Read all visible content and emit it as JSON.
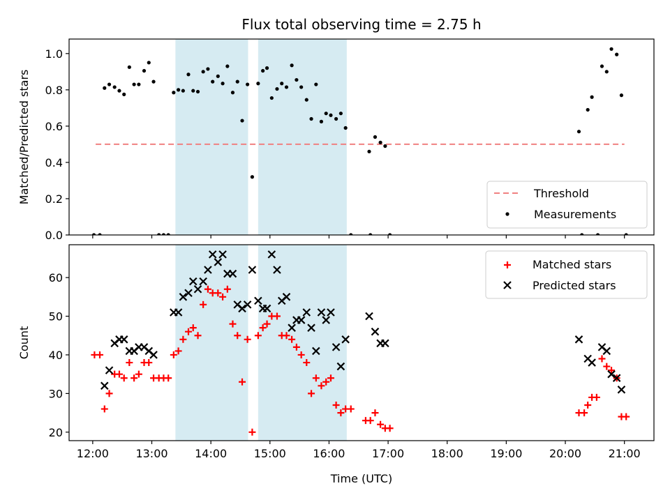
{
  "chart_data": [
    {
      "type": "scatter",
      "title": "Flux total observing time = 2.75 h",
      "ylabel": "Matched/Predicted stars",
      "ylim": [
        0,
        1.08
      ],
      "yticks": [
        "0.0",
        "0.2",
        "0.4",
        "0.6",
        "0.8",
        "1.0"
      ],
      "shared_x": true,
      "xlim": [
        11.6,
        21.5
      ],
      "shaded_intervals": [
        [
          13.4,
          14.63
        ],
        [
          14.8,
          16.3
        ]
      ],
      "shade_color": "#add8e6",
      "threshold": {
        "name": "Threshold",
        "y": 0.5,
        "x_range": [
          12.05,
          21.0
        ],
        "color": "#f08080"
      },
      "legend": {
        "position": "lower right",
        "entries": [
          "Threshold",
          "Measurements"
        ]
      },
      "series": [
        {
          "name": "Measurements",
          "color": "#000000",
          "marker": "dot",
          "points": [
            [
              12.02,
              0.0
            ],
            [
              12.12,
              0.0
            ],
            [
              12.2,
              0.81
            ],
            [
              12.28,
              0.83
            ],
            [
              12.37,
              0.815
            ],
            [
              12.45,
              0.795
            ],
            [
              12.53,
              0.775
            ],
            [
              12.62,
              0.925
            ],
            [
              12.7,
              0.83
            ],
            [
              12.78,
              0.83
            ],
            [
              12.87,
              0.905
            ],
            [
              12.95,
              0.95
            ],
            [
              13.03,
              0.845
            ],
            [
              13.12,
              0.0
            ],
            [
              13.2,
              0.0
            ],
            [
              13.28,
              0.0
            ],
            [
              13.37,
              0.785
            ],
            [
              13.45,
              0.8
            ],
            [
              13.53,
              0.795
            ],
            [
              13.62,
              0.885
            ],
            [
              13.7,
              0.795
            ],
            [
              13.78,
              0.79
            ],
            [
              13.87,
              0.9
            ],
            [
              13.95,
              0.915
            ],
            [
              14.03,
              0.845
            ],
            [
              14.12,
              0.875
            ],
            [
              14.2,
              0.835
            ],
            [
              14.28,
              0.93
            ],
            [
              14.37,
              0.785
            ],
            [
              14.45,
              0.845
            ],
            [
              14.53,
              0.63
            ],
            [
              14.62,
              0.83
            ],
            [
              14.7,
              0.32
            ],
            [
              14.8,
              0.835
            ],
            [
              14.88,
              0.905
            ],
            [
              14.95,
              0.92
            ],
            [
              15.03,
              0.755
            ],
            [
              15.12,
              0.805
            ],
            [
              15.2,
              0.835
            ],
            [
              15.28,
              0.815
            ],
            [
              15.37,
              0.935
            ],
            [
              15.45,
              0.855
            ],
            [
              15.53,
              0.815
            ],
            [
              15.62,
              0.745
            ],
            [
              15.7,
              0.64
            ],
            [
              15.78,
              0.83
            ],
            [
              15.87,
              0.625
            ],
            [
              15.95,
              0.67
            ],
            [
              16.03,
              0.66
            ],
            [
              16.12,
              0.64
            ],
            [
              16.2,
              0.67
            ],
            [
              16.28,
              0.59
            ],
            [
              16.37,
              0.0
            ],
            [
              16.68,
              0.46
            ],
            [
              16.7,
              0.0
            ],
            [
              16.78,
              0.54
            ],
            [
              16.87,
              0.51
            ],
            [
              16.95,
              0.49
            ],
            [
              17.03,
              0.0
            ],
            [
              20.23,
              0.57
            ],
            [
              20.28,
              0.0
            ],
            [
              20.38,
              0.69
            ],
            [
              20.45,
              0.76
            ],
            [
              20.55,
              0.0
            ],
            [
              20.62,
              0.93
            ],
            [
              20.7,
              0.9
            ],
            [
              20.78,
              1.025
            ],
            [
              20.87,
              0.995
            ],
            [
              20.95,
              0.77
            ],
            [
              21.03,
              0.0
            ]
          ]
        }
      ]
    },
    {
      "type": "scatter",
      "xlabel": "Time (UTC)",
      "ylabel": "Count",
      "ylim": [
        17.8,
        68.5
      ],
      "yticks": [
        "20",
        "30",
        "40",
        "50",
        "60"
      ],
      "xlim": [
        11.6,
        21.5
      ],
      "xticks": [
        "12:00",
        "13:00",
        "14:00",
        "15:00",
        "16:00",
        "17:00",
        "18:00",
        "19:00",
        "20:00",
        "21:00"
      ],
      "shaded_intervals": [
        [
          13.4,
          14.63
        ],
        [
          14.8,
          16.3
        ]
      ],
      "shade_color": "#add8e6",
      "legend": {
        "position": "upper right",
        "entries": [
          "Matched stars",
          "Predicted stars"
        ]
      },
      "series": [
        {
          "name": "Matched stars",
          "color": "#ff0000",
          "marker": "plus",
          "points": [
            [
              12.03,
              40
            ],
            [
              12.12,
              40
            ],
            [
              12.2,
              26
            ],
            [
              12.28,
              30
            ],
            [
              12.37,
              35
            ],
            [
              12.45,
              35
            ],
            [
              12.53,
              34
            ],
            [
              12.62,
              38
            ],
            [
              12.7,
              34
            ],
            [
              12.78,
              35
            ],
            [
              12.87,
              38
            ],
            [
              12.95,
              38
            ],
            [
              13.03,
              34
            ],
            [
              13.12,
              34
            ],
            [
              13.2,
              34
            ],
            [
              13.28,
              34
            ],
            [
              13.37,
              40
            ],
            [
              13.45,
              41
            ],
            [
              13.53,
              44
            ],
            [
              13.62,
              46
            ],
            [
              13.7,
              47
            ],
            [
              13.78,
              45
            ],
            [
              13.87,
              53
            ],
            [
              13.95,
              57
            ],
            [
              14.03,
              56
            ],
            [
              14.12,
              56
            ],
            [
              14.2,
              55
            ],
            [
              14.28,
              57
            ],
            [
              14.37,
              48
            ],
            [
              14.45,
              45
            ],
            [
              14.53,
              33
            ],
            [
              14.62,
              44
            ],
            [
              14.7,
              20
            ],
            [
              14.8,
              45
            ],
            [
              14.88,
              47
            ],
            [
              14.95,
              48
            ],
            [
              15.03,
              50
            ],
            [
              15.12,
              50
            ],
            [
              15.2,
              45
            ],
            [
              15.28,
              45
            ],
            [
              15.37,
              44
            ],
            [
              15.45,
              42
            ],
            [
              15.53,
              40
            ],
            [
              15.62,
              38
            ],
            [
              15.7,
              30
            ],
            [
              15.78,
              34
            ],
            [
              15.87,
              32
            ],
            [
              15.95,
              33
            ],
            [
              16.03,
              34
            ],
            [
              16.12,
              27
            ],
            [
              16.2,
              25
            ],
            [
              16.28,
              26
            ],
            [
              16.37,
              26
            ],
            [
              16.62,
              23
            ],
            [
              16.7,
              23
            ],
            [
              16.78,
              25
            ],
            [
              16.87,
              22
            ],
            [
              16.95,
              21
            ],
            [
              17.03,
              21
            ],
            [
              20.23,
              25
            ],
            [
              20.32,
              25
            ],
            [
              20.38,
              27
            ],
            [
              20.45,
              29
            ],
            [
              20.53,
              29
            ],
            [
              20.62,
              39
            ],
            [
              20.7,
              37
            ],
            [
              20.78,
              36
            ],
            [
              20.87,
              34
            ],
            [
              20.95,
              24
            ],
            [
              21.03,
              24
            ]
          ]
        },
        {
          "name": "Predicted stars",
          "color": "#000000",
          "marker": "x",
          "points": [
            [
              12.2,
              32
            ],
            [
              12.28,
              36
            ],
            [
              12.37,
              43
            ],
            [
              12.45,
              44
            ],
            [
              12.53,
              44
            ],
            [
              12.62,
              41
            ],
            [
              12.7,
              41
            ],
            [
              12.78,
              42
            ],
            [
              12.87,
              42
            ],
            [
              12.95,
              41
            ],
            [
              13.03,
              40
            ],
            [
              13.37,
              51
            ],
            [
              13.45,
              51
            ],
            [
              13.53,
              55
            ],
            [
              13.62,
              56
            ],
            [
              13.7,
              59
            ],
            [
              13.78,
              57
            ],
            [
              13.87,
              59
            ],
            [
              13.95,
              62
            ],
            [
              14.03,
              66
            ],
            [
              14.12,
              64
            ],
            [
              14.2,
              66
            ],
            [
              14.28,
              61
            ],
            [
              14.37,
              61
            ],
            [
              14.45,
              53
            ],
            [
              14.53,
              52
            ],
            [
              14.62,
              53
            ],
            [
              14.7,
              62
            ],
            [
              14.8,
              54
            ],
            [
              14.88,
              52
            ],
            [
              14.95,
              52
            ],
            [
              15.03,
              66
            ],
            [
              15.12,
              62
            ],
            [
              15.2,
              54
            ],
            [
              15.28,
              55
            ],
            [
              15.37,
              47
            ],
            [
              15.45,
              49
            ],
            [
              15.53,
              49
            ],
            [
              15.62,
              51
            ],
            [
              15.7,
              47
            ],
            [
              15.78,
              41
            ],
            [
              15.87,
              51
            ],
            [
              15.95,
              49
            ],
            [
              16.03,
              51
            ],
            [
              16.12,
              42
            ],
            [
              16.2,
              37
            ],
            [
              16.28,
              44
            ],
            [
              16.68,
              50
            ],
            [
              16.78,
              46
            ],
            [
              16.87,
              43
            ],
            [
              16.95,
              43
            ],
            [
              20.23,
              44
            ],
            [
              20.38,
              39
            ],
            [
              20.45,
              38
            ],
            [
              20.62,
              42
            ],
            [
              20.7,
              41
            ],
            [
              20.78,
              35
            ],
            [
              20.87,
              34
            ],
            [
              20.95,
              31
            ]
          ]
        }
      ]
    }
  ]
}
